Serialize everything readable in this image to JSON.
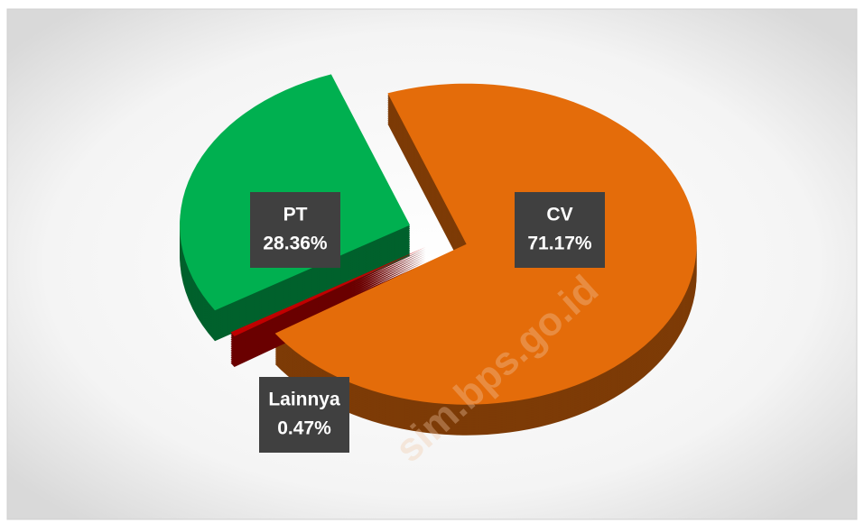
{
  "chart_data": {
    "type": "pie",
    "categories": [
      "CV",
      "Lainnya",
      "PT"
    ],
    "values": [
      71.17,
      0.47,
      28.36
    ],
    "value_labels": [
      "71.17%",
      "0.47%",
      "28.36%"
    ],
    "colors": [
      "#e46c0a",
      "#c00000",
      "#00b050"
    ],
    "watermark": "sim.bps.go.id"
  }
}
